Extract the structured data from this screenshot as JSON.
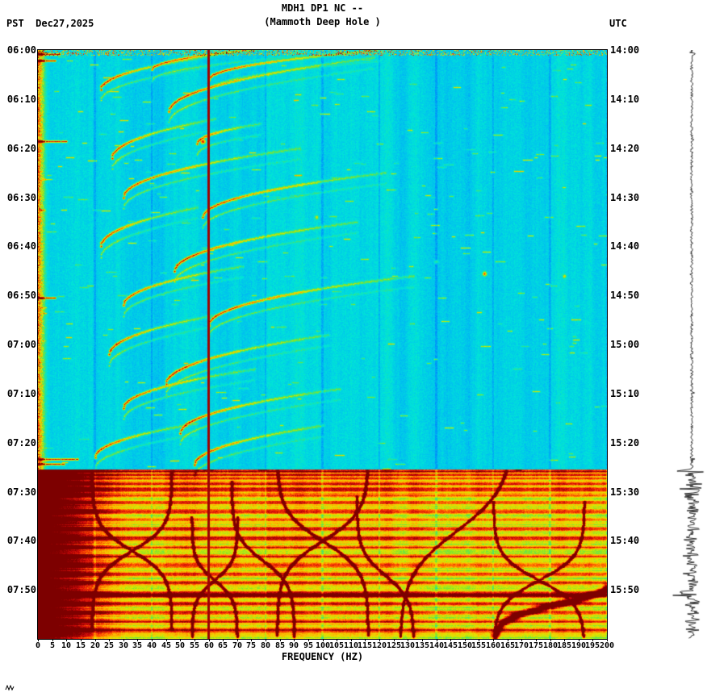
{
  "header": {
    "title": "MDH1 DP1 NC --",
    "subtitle": "(Mammoth Deep Hole )",
    "left_label": "PST  Dec27,2025",
    "right_label": "UTC"
  },
  "axes": {
    "x_label": "FREQUENCY (HZ)",
    "x_ticks": [
      0,
      5,
      10,
      15,
      20,
      25,
      30,
      35,
      40,
      45,
      50,
      55,
      60,
      65,
      70,
      75,
      80,
      85,
      90,
      95,
      100,
      105,
      110,
      115,
      120,
      125,
      130,
      135,
      140,
      145,
      150,
      155,
      160,
      165,
      170,
      175,
      180,
      185,
      190,
      195,
      200
    ],
    "left_time_ticks": [
      "06:00",
      "06:10",
      "06:20",
      "06:30",
      "06:40",
      "06:50",
      "07:00",
      "07:10",
      "07:20",
      "07:30",
      "07:40",
      "07:50"
    ],
    "right_time_ticks": [
      "14:00",
      "14:10",
      "14:20",
      "14:30",
      "14:40",
      "14:50",
      "15:00",
      "15:10",
      "15:20",
      "15:30",
      "15:40",
      "15:50"
    ]
  },
  "chart_data": {
    "type": "heatmap",
    "kind": "seismic-spectrogram-with-seismogram-trace",
    "title": "MDH1 DP1 NC --",
    "subtitle": "(Mammoth Deep Hole )",
    "station": "MDH1 DP1 NC",
    "date": "Dec27,2025",
    "timezone_left": "PST",
    "timezone_right": "UTC",
    "x_axis": {
      "label": "FREQUENCY (HZ)",
      "min": 0,
      "max": 200,
      "tick_step": 5
    },
    "y_axis": {
      "start_left": "06:00",
      "start_right": "14:00",
      "tick_interval_min": 10,
      "total_minutes": 120
    },
    "grid_hz": 20,
    "legend": "none",
    "colormap_stops": [
      [
        0.0,
        [
          0,
          0,
          140
        ]
      ],
      [
        0.1,
        [
          0,
          0,
          255
        ]
      ],
      [
        0.22,
        [
          0,
          120,
          255
        ]
      ],
      [
        0.34,
        [
          0,
          190,
          240
        ]
      ],
      [
        0.44,
        [
          0,
          230,
          215
        ]
      ],
      [
        0.52,
        [
          40,
          225,
          150
        ]
      ],
      [
        0.6,
        [
          130,
          230,
          40
        ]
      ],
      [
        0.68,
        [
          225,
          230,
          0
        ]
      ],
      [
        0.76,
        [
          255,
          180,
          0
        ]
      ],
      [
        0.84,
        [
          255,
          80,
          0
        ]
      ],
      [
        0.91,
        [
          215,
          10,
          10
        ]
      ],
      [
        1.0,
        [
          125,
          0,
          0
        ]
      ]
    ],
    "features": {
      "mains_hum_hz": 60,
      "low_freq_hot_band_max_hz": 3.5,
      "tremor_onset_min": 85.5,
      "gliding_arcs": [
        {
          "t0": 4,
          "f0": 40,
          "f1": 92,
          "dt": 5
        },
        {
          "t0": 6,
          "f0": 60,
          "f1": 120,
          "dt": 6
        },
        {
          "t0": 8,
          "f0": 22,
          "f1": 62,
          "dt": 7
        },
        {
          "t0": 12.5,
          "f0": 46,
          "f1": 118,
          "dt": 11
        },
        {
          "t0": 19,
          "f0": 56,
          "f1": 78,
          "dt": 4
        },
        {
          "t0": 22,
          "f0": 26,
          "f1": 62,
          "dt": 8
        },
        {
          "t0": 30,
          "f0": 30,
          "f1": 92,
          "dt": 10
        },
        {
          "t0": 34,
          "f0": 58,
          "f1": 122,
          "dt": 9
        },
        {
          "t0": 40,
          "f0": 22,
          "f1": 56,
          "dt": 8
        },
        {
          "t0": 45,
          "f0": 48,
          "f1": 112,
          "dt": 10
        },
        {
          "t0": 52,
          "f0": 30,
          "f1": 72,
          "dt": 8
        },
        {
          "t0": 56,
          "f0": 60,
          "f1": 132,
          "dt": 10
        },
        {
          "t0": 62,
          "f0": 25,
          "f1": 62,
          "dt": 8
        },
        {
          "t0": 68,
          "f0": 45,
          "f1": 102,
          "dt": 10
        },
        {
          "t0": 73,
          "f0": 30,
          "f1": 76,
          "dt": 8
        },
        {
          "t0": 78,
          "f0": 50,
          "f1": 106,
          "dt": 9
        },
        {
          "t0": 83,
          "f0": 20,
          "f1": 56,
          "dt": 7
        },
        {
          "t0": 84.5,
          "f0": 55,
          "f1": 100,
          "dt": 8
        }
      ],
      "doppler_scurves": [
        {
          "fc": 33,
          "tc": 102,
          "A": 14,
          "tau": 5,
          "dir": "both"
        },
        {
          "fc": 62,
          "tc": 108,
          "A": 8,
          "tau": 4,
          "dir": "both"
        },
        {
          "fc": 79,
          "tc": 104,
          "A": 11,
          "tau": 5,
          "dir": "up"
        },
        {
          "fc": 100,
          "tc": 100,
          "A": 16,
          "tau": 6,
          "dir": "both"
        },
        {
          "fc": 122,
          "tc": 107,
          "A": 10,
          "tau": 5,
          "dir": "up"
        },
        {
          "fc": 147,
          "tc": 98,
          "A": 20,
          "tau": 9,
          "dir": "down"
        },
        {
          "fc": 176,
          "tc": 108,
          "A": 16,
          "tau": 5,
          "dir": "both"
        },
        {
          "fc": 182,
          "tc": 113,
          "A": 22,
          "tau": 3,
          "dir": "down",
          "w": 3.5
        }
      ],
      "bands": [
        {
          "t": 85.8,
          "A": 0.35,
          "w": 0.35,
          "amp": 16
        },
        {
          "t": 86.6,
          "A": 0.3,
          "w": 0.3,
          "amp": 12
        },
        {
          "t": 87.3,
          "A": 0.25,
          "w": 0.3,
          "amp": 8
        },
        {
          "t": 88.4,
          "A": 0.3,
          "w": 0.4,
          "amp": 10
        },
        {
          "t": 89.6,
          "A": 0.35,
          "w": 0.45,
          "amp": 13
        },
        {
          "t": 90.8,
          "A": 0.3,
          "w": 0.4,
          "amp": 12
        },
        {
          "t": 92.2,
          "A": 0.26,
          "w": 0.35,
          "amp": 7
        },
        {
          "t": 94.0,
          "A": 0.3,
          "w": 0.45,
          "amp": 8
        },
        {
          "t": 95.8,
          "A": 0.22,
          "w": 0.35,
          "amp": 6
        },
        {
          "t": 97.6,
          "A": 0.3,
          "w": 0.4,
          "amp": 8
        },
        {
          "t": 99.5,
          "A": 0.34,
          "w": 0.5,
          "amp": 10
        },
        {
          "t": 101.4,
          "A": 0.26,
          "w": 0.35,
          "amp": 7
        },
        {
          "t": 103.2,
          "A": 0.3,
          "w": 0.4,
          "amp": 8
        },
        {
          "t": 105.0,
          "A": 0.28,
          "w": 0.4,
          "amp": 8
        },
        {
          "t": 106.8,
          "A": 0.28,
          "w": 0.4,
          "amp": 8
        },
        {
          "t": 108.6,
          "A": 0.3,
          "w": 0.45,
          "amp": 9
        },
        {
          "t": 111.0,
          "A": 0.55,
          "w": 0.6,
          "amp": 26
        },
        {
          "t": 112.8,
          "A": 0.3,
          "w": 0.4,
          "amp": 10
        },
        {
          "t": 114.6,
          "A": 0.26,
          "w": 0.4,
          "amp": 8
        },
        {
          "t": 116.4,
          "A": 0.28,
          "w": 0.45,
          "amp": 8
        },
        {
          "t": 118.2,
          "A": 0.3,
          "w": 0.5,
          "amp": 9
        }
      ],
      "blobs": [
        {
          "hz": 58,
          "t": 18.5,
          "amp": 0.55,
          "r": 3
        },
        {
          "hz": 157,
          "t": 45.5,
          "amp": 0.45,
          "r": 2.5
        },
        {
          "hz": 185,
          "t": 46,
          "amp": 0.3,
          "r": 2
        },
        {
          "hz": 98,
          "t": 34,
          "amp": 0.28,
          "r": 2
        },
        {
          "hz": 140,
          "t": 43,
          "amp": 0.25,
          "r": 2
        }
      ],
      "left_dashes": [
        {
          "t": 0.8,
          "hz": 8
        },
        {
          "t": 2.2,
          "hz": 6
        },
        {
          "t": 18.6,
          "hz": 10
        },
        {
          "t": 50.5,
          "hz": 6
        },
        {
          "t": 83.3,
          "hz": 14
        },
        {
          "t": 84.4,
          "hz": 9
        }
      ],
      "trace_blips": [
        {
          "t": 0.8,
          "amp": 4
        },
        {
          "t": 18.5,
          "amp": 2.5
        },
        {
          "t": 45.5,
          "amp": 2
        },
        {
          "t": 70,
          "amp": 2
        },
        {
          "t": 83.5,
          "amp": 3
        }
      ]
    }
  }
}
